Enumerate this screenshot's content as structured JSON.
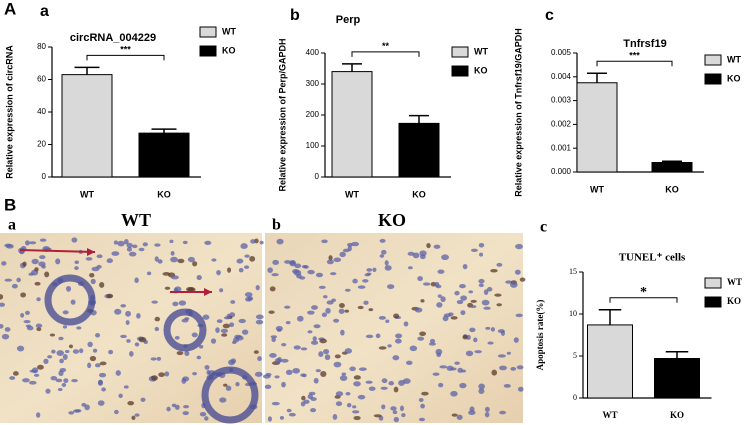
{
  "figure_labels": {
    "part_a": "A",
    "part_b": "B"
  },
  "images": [
    {
      "panel": "a",
      "title": "WT"
    },
    {
      "panel": "b",
      "title": "KO"
    }
  ],
  "chart_data": [
    {
      "type": "bar",
      "panel": "a",
      "title": "circRNA_004229",
      "y_label": "Relative expression of circRNA",
      "categories": [
        "WT",
        "KO"
      ],
      "values": [
        63,
        27
      ],
      "errors": [
        4.5,
        2.5
      ],
      "colors": [
        "#d9d9d9",
        "#000000"
      ],
      "ylim": [
        0,
        80
      ],
      "yticks": [
        0,
        20,
        40,
        60,
        80
      ],
      "significance": "***"
    },
    {
      "type": "bar",
      "panel": "b",
      "title": "Perp",
      "y_label": "Relative expression of Perp/GAPDH",
      "categories": [
        "WT",
        "KO"
      ],
      "values": [
        340,
        173
      ],
      "errors": [
        25,
        25
      ],
      "colors": [
        "#d9d9d9",
        "#000000"
      ],
      "ylim": [
        0,
        400
      ],
      "yticks": [
        0,
        100,
        200,
        300,
        400
      ],
      "significance": "**"
    },
    {
      "type": "bar",
      "panel": "c",
      "title": "Tnfrsf19",
      "y_label": "Relative expression of Tnfrsf19/GAPDH",
      "categories": [
        "WT",
        "KO"
      ],
      "values": [
        0.00375,
        0.0004
      ],
      "errors": [
        0.0004,
        5e-05
      ],
      "colors": [
        "#d9d9d9",
        "#000000"
      ],
      "ylim": [
        0,
        0.005
      ],
      "yticks": [
        {
          "value": 0,
          "label": "0.000"
        },
        {
          "value": 0.001,
          "label": "0.001"
        },
        {
          "value": 0.002,
          "label": "0.002"
        },
        {
          "value": 0.003,
          "label": "0.003"
        },
        {
          "value": 0.004,
          "label": "0.004"
        },
        {
          "value": 0.005,
          "label": "0.005"
        }
      ],
      "significance": "***"
    },
    {
      "type": "bar",
      "panel": "c",
      "title": "TUNEL⁺ cells",
      "y_label": "Apoptosis rate(%)",
      "categories": [
        "WT",
        "KO"
      ],
      "values": [
        8.7,
        4.7
      ],
      "errors": [
        1.8,
        0.8
      ],
      "colors": [
        "#d9d9d9",
        "#000000"
      ],
      "ylim": [
        0,
        15
      ],
      "yticks": [
        0,
        5,
        10,
        15
      ],
      "significance": "*"
    }
  ]
}
